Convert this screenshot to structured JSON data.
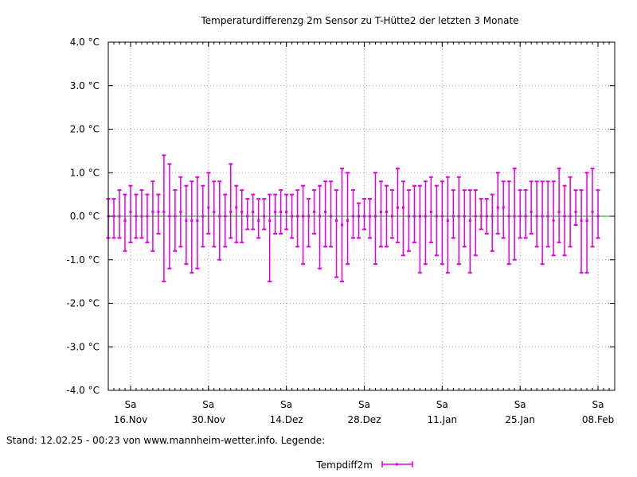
{
  "footer": {
    "stand_text": "Stand: 12.02.25 - 00:23 von www.mannheim-wetter.info. Legende:"
  },
  "chart_data": {
    "type": "errorbar",
    "title": "Temperaturdifferenzg 2m Sensor zu T-Hütte2 der letzten 3 Monate",
    "xlabel": "",
    "ylabel": "",
    "ylim": [
      -4,
      4
    ],
    "y_ticks": [
      {
        "value": 4,
        "label": "4.0 °C"
      },
      {
        "value": 3,
        "label": "3.0 °C"
      },
      {
        "value": 2,
        "label": "2.0 °C"
      },
      {
        "value": 1,
        "label": "1.0 °C"
      },
      {
        "value": 0,
        "label": "0.0 °C"
      },
      {
        "value": -1,
        "label": "-1.0 °C"
      },
      {
        "value": -2,
        "label": "-2.0 °C"
      },
      {
        "value": -3,
        "label": "-3.0 °C"
      },
      {
        "value": -4,
        "label": "-4.0 °C"
      }
    ],
    "x_range": [
      "2024-11-12",
      "2025-02-11"
    ],
    "x_ticks": [
      {
        "date": "2024-11-16",
        "day": "Sa",
        "label": "16.Nov"
      },
      {
        "date": "2024-11-30",
        "day": "Sa",
        "label": "30.Nov"
      },
      {
        "date": "2024-12-14",
        "day": "Sa",
        "label": "14.Dez"
      },
      {
        "date": "2024-12-28",
        "day": "Sa",
        "label": "28.Dez"
      },
      {
        "date": "2025-01-11",
        "day": "Sa",
        "label": "11.Jan"
      },
      {
        "date": "2025-01-25",
        "day": "Sa",
        "label": "25.Jan"
      },
      {
        "date": "2025-02-08",
        "day": "Sa",
        "label": "08.Feb"
      }
    ],
    "grid": true,
    "zero_line": true,
    "legend_position": "bottom-center",
    "series": [
      {
        "name": "Tempdiff2m",
        "color": "#e000e0",
        "points": [
          {
            "date": "2024-11-12",
            "min": -0.5,
            "max": 0.4,
            "mean": 0.0
          },
          {
            "date": "2024-11-13",
            "min": -0.5,
            "max": 0.4,
            "mean": 0.0
          },
          {
            "date": "2024-11-14",
            "min": -0.5,
            "max": 0.6,
            "mean": 0.0
          },
          {
            "date": "2024-11-15",
            "min": -0.8,
            "max": 0.5,
            "mean": -0.1
          },
          {
            "date": "2024-11-16",
            "min": -0.6,
            "max": 0.7,
            "mean": 0.1
          },
          {
            "date": "2024-11-17",
            "min": -0.5,
            "max": 0.5,
            "mean": 0.0
          },
          {
            "date": "2024-11-18",
            "min": -0.5,
            "max": 0.6,
            "mean": 0.0
          },
          {
            "date": "2024-11-19",
            "min": -0.6,
            "max": 0.5,
            "mean": 0.0
          },
          {
            "date": "2024-11-20",
            "min": -0.8,
            "max": 0.8,
            "mean": 0.1
          },
          {
            "date": "2024-11-21",
            "min": -0.4,
            "max": 0.5,
            "mean": 0.1
          },
          {
            "date": "2024-11-22",
            "min": -1.5,
            "max": 1.4,
            "mean": 0.1
          },
          {
            "date": "2024-11-23",
            "min": -1.2,
            "max": 1.2,
            "mean": 0.0
          },
          {
            "date": "2024-11-24",
            "min": -0.8,
            "max": 0.6,
            "mean": 0.0
          },
          {
            "date": "2024-11-25",
            "min": -0.7,
            "max": 0.9,
            "mean": 0.1
          },
          {
            "date": "2024-11-26",
            "min": -1.1,
            "max": 0.7,
            "mean": -0.1
          },
          {
            "date": "2024-11-27",
            "min": -1.3,
            "max": 0.8,
            "mean": -0.1
          },
          {
            "date": "2024-11-28",
            "min": -1.2,
            "max": 0.9,
            "mean": -0.1
          },
          {
            "date": "2024-11-29",
            "min": -0.7,
            "max": 0.7,
            "mean": 0.0
          },
          {
            "date": "2024-11-30",
            "min": -0.4,
            "max": 1.0,
            "mean": 0.2
          },
          {
            "date": "2024-12-01",
            "min": -0.7,
            "max": 0.8,
            "mean": 0.1
          },
          {
            "date": "2024-12-02",
            "min": -1.0,
            "max": 0.8,
            "mean": 0.0
          },
          {
            "date": "2024-12-03",
            "min": -0.7,
            "max": 0.5,
            "mean": 0.0
          },
          {
            "date": "2024-12-04",
            "min": -0.5,
            "max": 1.2,
            "mean": 0.1
          },
          {
            "date": "2024-12-05",
            "min": -0.6,
            "max": 0.7,
            "mean": 0.2
          },
          {
            "date": "2024-12-06",
            "min": -0.6,
            "max": 0.6,
            "mean": 0.1
          },
          {
            "date": "2024-12-07",
            "min": -0.3,
            "max": 0.4,
            "mean": 0.0
          },
          {
            "date": "2024-12-08",
            "min": -0.3,
            "max": 0.5,
            "mean": 0.1
          },
          {
            "date": "2024-12-09",
            "min": -0.5,
            "max": 0.4,
            "mean": -0.1
          },
          {
            "date": "2024-12-10",
            "min": -0.3,
            "max": 0.4,
            "mean": 0.0
          },
          {
            "date": "2024-12-11",
            "min": -1.5,
            "max": 0.5,
            "mean": -0.1
          },
          {
            "date": "2024-12-12",
            "min": -0.4,
            "max": 0.5,
            "mean": 0.1
          },
          {
            "date": "2024-12-13",
            "min": -0.4,
            "max": 0.6,
            "mean": 0.1
          },
          {
            "date": "2024-12-14",
            "min": -0.3,
            "max": 0.5,
            "mean": 0.1
          },
          {
            "date": "2024-12-15",
            "min": -0.5,
            "max": 0.5,
            "mean": 0.0
          },
          {
            "date": "2024-12-16",
            "min": -0.7,
            "max": 0.6,
            "mean": 0.0
          },
          {
            "date": "2024-12-17",
            "min": -1.1,
            "max": 0.7,
            "mean": 0.0
          },
          {
            "date": "2024-12-18",
            "min": -0.7,
            "max": 0.4,
            "mean": 0.0
          },
          {
            "date": "2024-12-19",
            "min": -0.4,
            "max": 0.6,
            "mean": 0.1
          },
          {
            "date": "2024-12-20",
            "min": -1.2,
            "max": 0.7,
            "mean": 0.0
          },
          {
            "date": "2024-12-21",
            "min": -0.7,
            "max": 0.8,
            "mean": 0.1
          },
          {
            "date": "2024-12-22",
            "min": -0.7,
            "max": 0.8,
            "mean": 0.0
          },
          {
            "date": "2024-12-23",
            "min": -1.4,
            "max": 0.6,
            "mean": -0.1
          },
          {
            "date": "2024-12-24",
            "min": -1.5,
            "max": 1.1,
            "mean": -0.2
          },
          {
            "date": "2024-12-25",
            "min": -1.1,
            "max": 1.0,
            "mean": -0.1
          },
          {
            "date": "2024-12-26",
            "min": -0.5,
            "max": 0.6,
            "mean": 0.0
          },
          {
            "date": "2024-12-27",
            "min": -0.5,
            "max": 0.3,
            "mean": 0.0
          },
          {
            "date": "2024-12-28",
            "min": -0.3,
            "max": 0.4,
            "mean": 0.0
          },
          {
            "date": "2024-12-29",
            "min": -0.5,
            "max": 0.4,
            "mean": 0.0
          },
          {
            "date": "2024-12-30",
            "min": -1.1,
            "max": 1.0,
            "mean": 0.0
          },
          {
            "date": "2024-12-31",
            "min": -0.7,
            "max": 0.8,
            "mean": 0.1
          },
          {
            "date": "2025-01-01",
            "min": -0.7,
            "max": 0.7,
            "mean": 0.1
          },
          {
            "date": "2025-01-02",
            "min": -0.5,
            "max": 0.6,
            "mean": 0.0
          },
          {
            "date": "2025-01-03",
            "min": -0.6,
            "max": 1.1,
            "mean": 0.2
          },
          {
            "date": "2025-01-04",
            "min": -0.9,
            "max": 0.8,
            "mean": 0.2
          },
          {
            "date": "2025-01-05",
            "min": -0.8,
            "max": 0.6,
            "mean": 0.0
          },
          {
            "date": "2025-01-06",
            "min": -0.6,
            "max": 0.7,
            "mean": 0.0
          },
          {
            "date": "2025-01-07",
            "min": -1.3,
            "max": 0.7,
            "mean": 0.0
          },
          {
            "date": "2025-01-08",
            "min": -1.1,
            "max": 0.8,
            "mean": 0.0
          },
          {
            "date": "2025-01-09",
            "min": -0.6,
            "max": 0.9,
            "mean": 0.1
          },
          {
            "date": "2025-01-10",
            "min": -0.9,
            "max": 0.7,
            "mean": 0.0
          },
          {
            "date": "2025-01-11",
            "min": -1.1,
            "max": 0.8,
            "mean": 0.0
          },
          {
            "date": "2025-01-12",
            "min": -1.3,
            "max": 0.9,
            "mean": -0.1
          },
          {
            "date": "2025-01-13",
            "min": -0.5,
            "max": 0.6,
            "mean": 0.0
          },
          {
            "date": "2025-01-14",
            "min": -1.1,
            "max": 0.9,
            "mean": 0.0
          },
          {
            "date": "2025-01-15",
            "min": -0.7,
            "max": 0.6,
            "mean": 0.0
          },
          {
            "date": "2025-01-16",
            "min": -1.3,
            "max": 0.6,
            "mean": -0.1
          },
          {
            "date": "2025-01-17",
            "min": -0.9,
            "max": 0.6,
            "mean": 0.0
          },
          {
            "date": "2025-01-18",
            "min": -0.3,
            "max": 0.4,
            "mean": 0.0
          },
          {
            "date": "2025-01-19",
            "min": -0.4,
            "max": 0.4,
            "mean": 0.0
          },
          {
            "date": "2025-01-20",
            "min": -0.8,
            "max": 0.5,
            "mean": 0.0
          },
          {
            "date": "2025-01-21",
            "min": -0.4,
            "max": 1.0,
            "mean": 0.2
          },
          {
            "date": "2025-01-22",
            "min": -0.5,
            "max": 0.8,
            "mean": 0.2
          },
          {
            "date": "2025-01-23",
            "min": -1.1,
            "max": 0.8,
            "mean": 0.0
          },
          {
            "date": "2025-01-24",
            "min": -1.0,
            "max": 1.1,
            "mean": 0.0
          },
          {
            "date": "2025-01-25",
            "min": -0.5,
            "max": 0.6,
            "mean": 0.0
          },
          {
            "date": "2025-01-26",
            "min": -0.5,
            "max": 0.6,
            "mean": 0.0
          },
          {
            "date": "2025-01-27",
            "min": -0.4,
            "max": 0.8,
            "mean": 0.1
          },
          {
            "date": "2025-01-28",
            "min": -0.7,
            "max": 0.8,
            "mean": 0.0
          },
          {
            "date": "2025-01-29",
            "min": -1.1,
            "max": 0.8,
            "mean": 0.0
          },
          {
            "date": "2025-01-30",
            "min": -0.7,
            "max": 0.8,
            "mean": 0.0
          },
          {
            "date": "2025-01-31",
            "min": -0.9,
            "max": 0.8,
            "mean": -0.1
          },
          {
            "date": "2025-02-01",
            "min": -0.6,
            "max": 1.1,
            "mean": 0.1
          },
          {
            "date": "2025-02-02",
            "min": -0.9,
            "max": 0.7,
            "mean": 0.0
          },
          {
            "date": "2025-02-03",
            "min": -0.7,
            "max": 0.9,
            "mean": 0.0
          },
          {
            "date": "2025-02-04",
            "min": -0.2,
            "max": 0.6,
            "mean": 0.1
          },
          {
            "date": "2025-02-05",
            "min": -1.3,
            "max": 0.6,
            "mean": -0.1
          },
          {
            "date": "2025-02-06",
            "min": -1.3,
            "max": 1.0,
            "mean": -0.1
          },
          {
            "date": "2025-02-07",
            "min": -0.7,
            "max": 1.1,
            "mean": 0.1
          },
          {
            "date": "2025-02-08",
            "min": -0.5,
            "max": 0.6,
            "mean": 0.0
          }
        ]
      }
    ]
  }
}
